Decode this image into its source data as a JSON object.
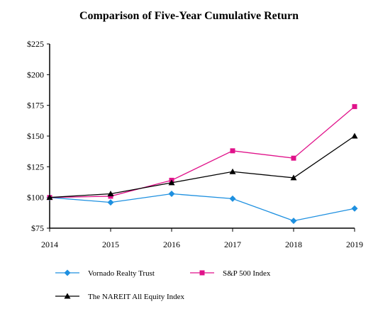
{
  "chart_data": {
    "type": "line",
    "title": "Comparison of Five-Year Cumulative Return",
    "xlabel": "",
    "ylabel": "",
    "categories": [
      "2014",
      "2015",
      "2016",
      "2017",
      "2018",
      "2019"
    ],
    "ylim": [
      75,
      225
    ],
    "yticks": [
      75,
      100,
      125,
      150,
      175,
      200,
      225
    ],
    "ytick_labels": [
      "$75",
      "$100",
      "$125",
      "$150",
      "$175",
      "$200",
      "$225"
    ],
    "grid": false,
    "legend_position": "bottom",
    "series": [
      {
        "name": "Vornado Realty Trust",
        "color": "#1e90e0",
        "marker": "diamond",
        "values": [
          100,
          96,
          103,
          99,
          81,
          91
        ]
      },
      {
        "name": "S&P 500 Index",
        "color": "#e0128a",
        "marker": "square",
        "values": [
          100,
          101,
          114,
          138,
          132,
          174
        ]
      },
      {
        "name": "The NAREIT All Equity Index",
        "color": "#000000",
        "marker": "triangle",
        "values": [
          100,
          103,
          112,
          121,
          116,
          150
        ]
      }
    ]
  }
}
